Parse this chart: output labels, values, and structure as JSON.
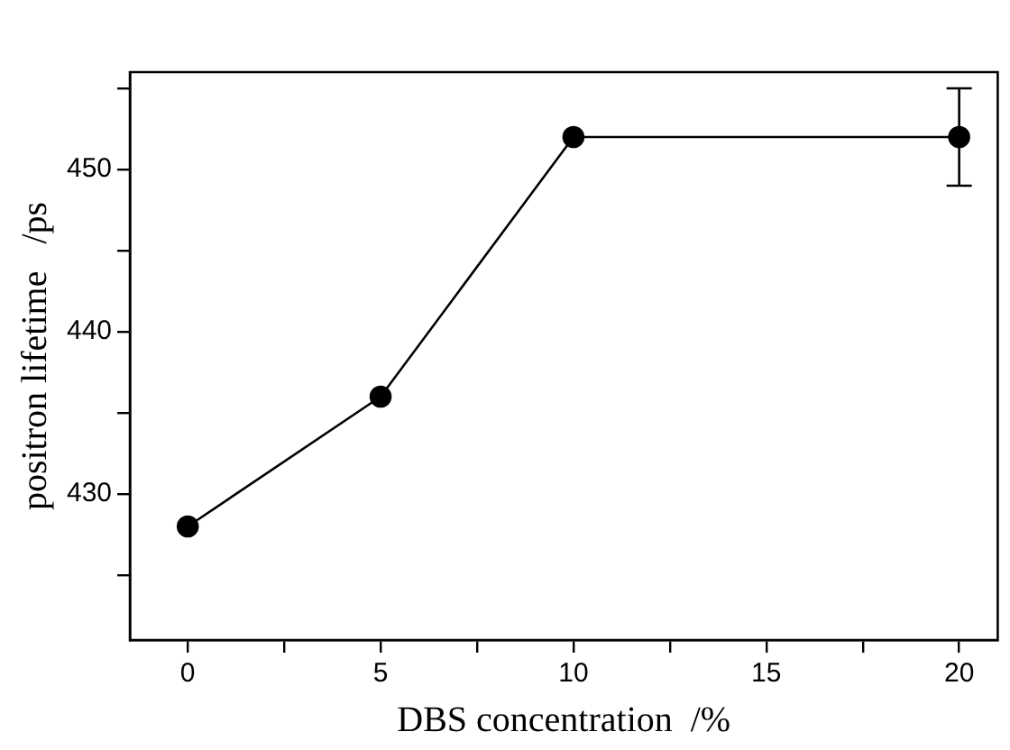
{
  "chart_data": {
    "type": "line",
    "xlabel": "DBS concentration  /%",
    "ylabel": "positron lifetime   /ps",
    "x": [
      0,
      5,
      10,
      20
    ],
    "series": [
      {
        "color": "#000000",
        "values": [
          428,
          436,
          452,
          452
        ],
        "errors": [
          null,
          null,
          null,
          3
        ]
      }
    ],
    "xlim": [
      -1.5,
      21
    ],
    "ylim": [
      421,
      456
    ],
    "xticks": [
      0,
      {
        "value": 2.5,
        "label": null
      },
      5,
      {
        "value": 7.5,
        "label": null
      },
      10,
      {
        "value": 12.5,
        "label": null
      },
      15,
      {
        "value": 17.5,
        "label": null
      },
      20
    ],
    "yticks": [
      {
        "value": 425,
        "label": null
      },
      430,
      {
        "value": 435,
        "label": null
      },
      440,
      {
        "value": 445,
        "label": null
      },
      450,
      {
        "value": 455,
        "label": null
      }
    ],
    "grid": false,
    "legend": false,
    "marker": "circle",
    "line_style": "solid"
  }
}
